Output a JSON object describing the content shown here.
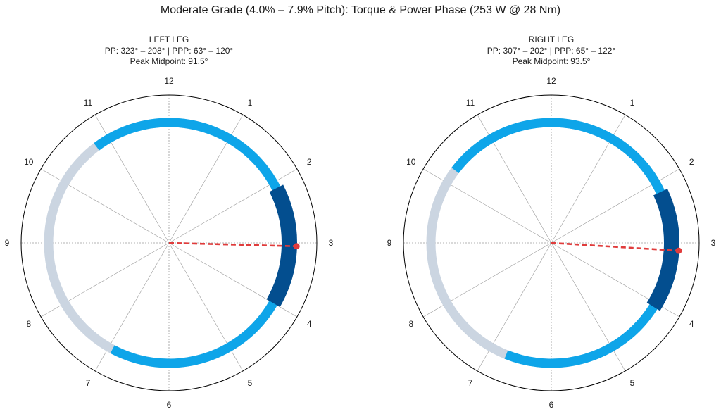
{
  "title": "Moderate Grade (4.0% – 7.9% Pitch): Torque & Power Phase (253 W @ 28 Nm)",
  "colors": {
    "background_arc": "#cbd5e1",
    "power_phase": "#0ea5e9",
    "peak_power_phase": "#034e8f",
    "peak_midpoint": "#e03c3c",
    "grid": "#9a9a9a",
    "outer_circle": "#000000"
  },
  "chart_data": [
    {
      "type": "polar-arc",
      "panel": "left",
      "title": "LEFT LEG",
      "subtitle": "PP: 323° – 208° | PPP: 63° – 120°",
      "peak_label": "Peak Midpoint: 91.5°",
      "clock_labels": [
        "12",
        "1",
        "2",
        "3",
        "4",
        "5",
        "6",
        "7",
        "8",
        "9",
        "10",
        "11"
      ],
      "full_circle_background": true,
      "power_phase_deg": [
        323,
        208
      ],
      "peak_power_phase_deg": [
        63,
        120
      ],
      "peak_midpoint_deg": 91.5,
      "peak_marker_radius_fraction": 1.06,
      "angle_convention": "clockwise from 12 o'clock (0°)"
    },
    {
      "type": "polar-arc",
      "panel": "right",
      "title": "RIGHT LEG",
      "subtitle": "PP: 307° – 202° | PPP: 65° – 122°",
      "peak_label": "Peak Midpoint: 93.5°",
      "clock_labels": [
        "12",
        "1",
        "2",
        "3",
        "4",
        "5",
        "6",
        "7",
        "8",
        "9",
        "10",
        "11"
      ],
      "full_circle_background": true,
      "power_phase_deg": [
        307,
        202
      ],
      "peak_power_phase_deg": [
        65,
        122
      ],
      "peak_midpoint_deg": 93.5,
      "peak_marker_radius_fraction": 1.06,
      "angle_convention": "clockwise from 12 o'clock (0°)"
    }
  ]
}
